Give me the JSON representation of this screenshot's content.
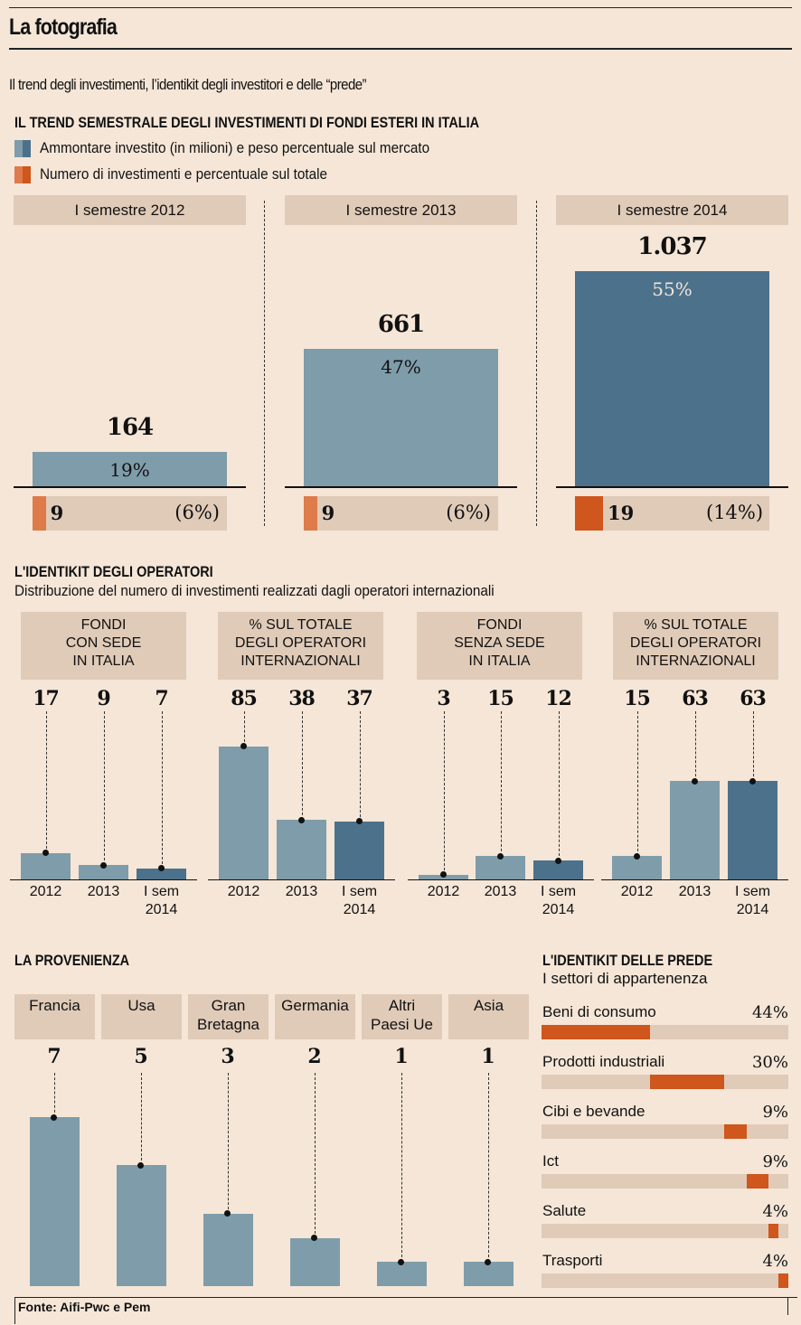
{
  "header": {
    "title": "La fotografia",
    "subtitle": "Il trend degli investimenti, l’identikit degli investitori e delle “prede”"
  },
  "colors": {
    "background": "#f5e6d7",
    "box": "#e0cbb8",
    "bar_light": "#7f9caa",
    "bar_dark": "#4c718b",
    "orange_light": "#de7b4a",
    "orange_dark": "#cf561c"
  },
  "trend": {
    "heading": "IL TREND SEMESTRALE DEGLI INVESTIMENTI DI FONDI ESTERI IN ITALIA",
    "legend": [
      {
        "label": "Ammontare investito (in milioni) e peso percentuale sul mercato"
      },
      {
        "label": "Numero di investimenti e percentuale sul totale"
      }
    ]
  },
  "operatori": {
    "heading": "L'IDENTIKIT DEGLI OPERATORI",
    "subheading": "Distribuzione del numero di investimenti realizzati dagli operatori internazionali"
  },
  "provenienza": {
    "heading": "LA PROVENIENZA"
  },
  "prede": {
    "heading": "L'IDENTIKIT DELLE PREDE",
    "subheading": "I settori di appartenenza"
  },
  "source": "Fonte: Aifi-Pwc e Pem",
  "chart_data": [
    {
      "type": "bar",
      "title": "IL TREND SEMESTRALE DEGLI INVESTIMENTI DI FONDI ESTERI IN ITALIA",
      "categories": [
        "I semestre 2012",
        "I semestre 2013",
        "I semestre 2014"
      ],
      "series": [
        {
          "name": "Ammontare investito (in milioni)",
          "values": [
            164,
            661,
            1037
          ],
          "labels": [
            "164",
            "661",
            "1.037"
          ]
        },
        {
          "name": "Peso percentuale sul mercato",
          "values": [
            19,
            47,
            55
          ],
          "labels": [
            "19%",
            "47%",
            "55%"
          ]
        },
        {
          "name": "Numero di investimenti",
          "values": [
            9,
            9,
            19
          ],
          "labels": [
            "9",
            "9",
            "19"
          ]
        },
        {
          "name": "Percentuale sul totale",
          "values": [
            6,
            6,
            14
          ],
          "labels": [
            "(6%)",
            "(6%)",
            "(14%)"
          ]
        }
      ],
      "ylim": [
        0,
        1037
      ]
    },
    {
      "type": "bar",
      "title": "L'IDENTIKIT DEGLI OPERATORI",
      "subtitle": "Distribuzione del numero di investimenti realizzati dagli operatori internazionali",
      "x_labels": [
        "2012",
        "2013",
        "I sem 2014"
      ],
      "panels": [
        {
          "name": "FONDI CON SEDE IN ITALIA",
          "lines": [
            "FONDI",
            "CON SEDE",
            "IN ITALIA"
          ],
          "values": [
            17,
            9,
            7
          ],
          "ylim": [
            0,
            100
          ]
        },
        {
          "name": "% SUL TOTALE DEGLI OPERATORI INTERNAZIONALI",
          "lines": [
            "% SUL TOTALE",
            "DEGLI OPERATORI",
            "INTERNAZIONALI"
          ],
          "values": [
            85,
            38,
            37
          ],
          "ylim": [
            0,
            100
          ]
        },
        {
          "name": "FONDI SENZA SEDE IN ITALIA",
          "lines": [
            "FONDI",
            "SENZA SEDE",
            "IN ITALIA"
          ],
          "values": [
            3,
            15,
            12
          ],
          "ylim": [
            0,
            100
          ]
        },
        {
          "name": "% SUL TOTALE DEGLI OPERATORI INTERNAZIONALI",
          "lines": [
            "% SUL TOTALE",
            "DEGLI OPERATORI",
            "INTERNAZIONALI"
          ],
          "values": [
            15,
            63,
            63
          ],
          "ylim": [
            0,
            100
          ]
        }
      ]
    },
    {
      "type": "bar",
      "title": "LA PROVENIENZA",
      "categories": [
        "Francia",
        "Usa",
        "Gran Bretagna",
        "Germania",
        "Altri Paesi Ue",
        "Asia"
      ],
      "category_lines": [
        [
          "Francia"
        ],
        [
          "Usa"
        ],
        [
          "Gran",
          "Bretagna"
        ],
        [
          "Germania"
        ],
        [
          "Altri",
          "Paesi Ue"
        ],
        [
          "Asia"
        ]
      ],
      "values": [
        7,
        5,
        3,
        2,
        1,
        1
      ],
      "ylim": [
        0,
        7
      ]
    },
    {
      "type": "bar",
      "title": "L'IDENTIKIT DELLE PREDE",
      "subtitle": "I settori di appartenenza",
      "categories": [
        "Beni di consumo",
        "Prodotti industriali",
        "Cibi e bevande",
        "Ict",
        "Salute",
        "Trasporti"
      ],
      "values": [
        44,
        30,
        9,
        9,
        4,
        4
      ],
      "labels": [
        "44%",
        "30%",
        "9%",
        "9%",
        "4%",
        "4%"
      ],
      "note": "stacked segments across a 100% track"
    }
  ]
}
